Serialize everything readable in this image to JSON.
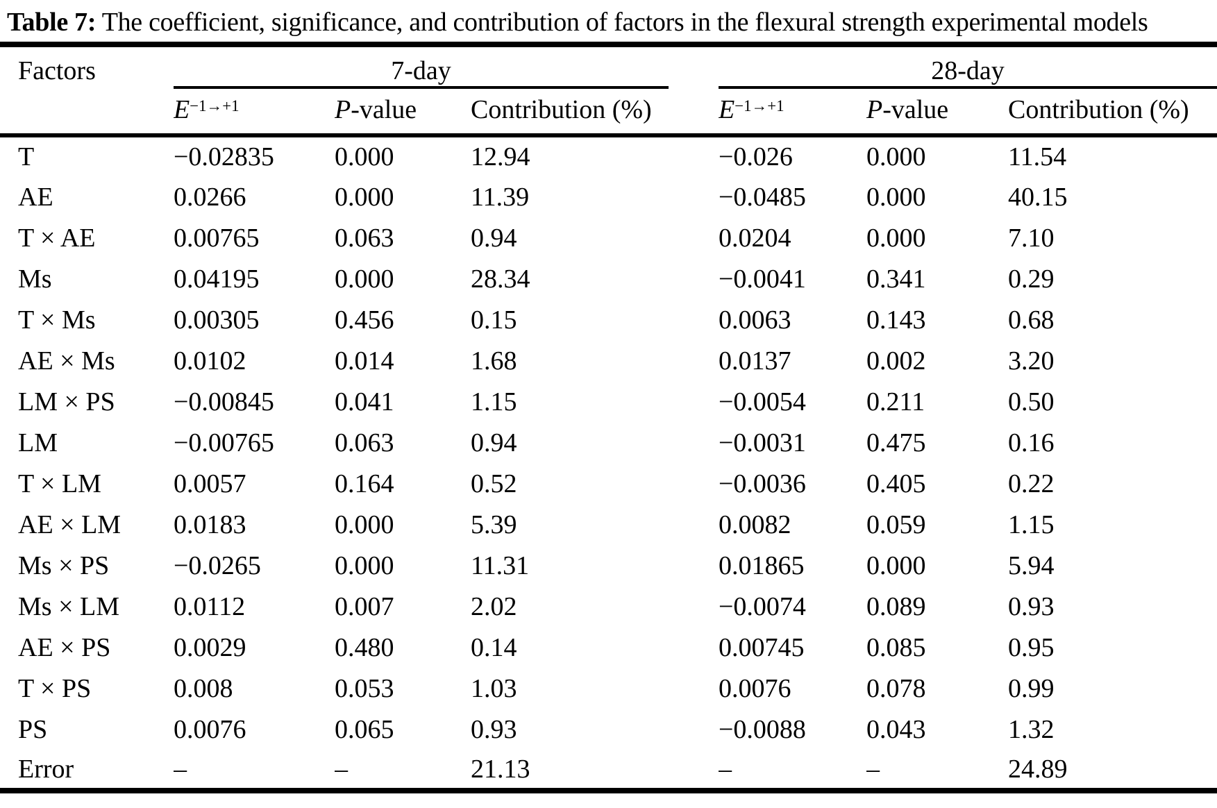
{
  "title": {
    "label": "Table 7:",
    "text": "The coefficient, significance, and contribution of factors in the flexural strength experimental models"
  },
  "table": {
    "factors_header": "Factors",
    "groups": [
      {
        "label": "7-day"
      },
      {
        "label": "28-day"
      }
    ],
    "subheader": {
      "e_base": "E",
      "e_sup": "−1→+1",
      "p_italic": "P",
      "p_rest": "-value",
      "contribution": "Contribution (%)"
    },
    "rows": [
      {
        "factor": "T",
        "d7": {
          "e": "−0.02835",
          "p": "0.000",
          "c": "12.94"
        },
        "d28": {
          "e": "−0.026",
          "p": "0.000",
          "c": "11.54"
        }
      },
      {
        "factor": "AE",
        "d7": {
          "e": "0.0266",
          "p": "0.000",
          "c": "11.39"
        },
        "d28": {
          "e": "−0.0485",
          "p": "0.000",
          "c": "40.15"
        }
      },
      {
        "factor": "T × AE",
        "d7": {
          "e": "0.00765",
          "p": "0.063",
          "c": "0.94"
        },
        "d28": {
          "e": "0.0204",
          "p": "0.000",
          "c": "7.10"
        }
      },
      {
        "factor": "Ms",
        "d7": {
          "e": "0.04195",
          "p": "0.000",
          "c": "28.34"
        },
        "d28": {
          "e": "−0.0041",
          "p": "0.341",
          "c": "0.29"
        }
      },
      {
        "factor": "T × Ms",
        "d7": {
          "e": "0.00305",
          "p": "0.456",
          "c": "0.15"
        },
        "d28": {
          "e": "0.0063",
          "p": "0.143",
          "c": "0.68"
        }
      },
      {
        "factor": "AE × Ms",
        "d7": {
          "e": "0.0102",
          "p": "0.014",
          "c": "1.68"
        },
        "d28": {
          "e": "0.0137",
          "p": "0.002",
          "c": "3.20"
        }
      },
      {
        "factor": "LM × PS",
        "d7": {
          "e": "−0.00845",
          "p": "0.041",
          "c": "1.15"
        },
        "d28": {
          "e": "−0.0054",
          "p": "0.211",
          "c": "0.50"
        }
      },
      {
        "factor": "LM",
        "d7": {
          "e": "−0.00765",
          "p": "0.063",
          "c": "0.94"
        },
        "d28": {
          "e": "−0.0031",
          "p": "0.475",
          "c": "0.16"
        }
      },
      {
        "factor": "T × LM",
        "d7": {
          "e": "0.0057",
          "p": "0.164",
          "c": "0.52"
        },
        "d28": {
          "e": "−0.0036",
          "p": "0.405",
          "c": "0.22"
        }
      },
      {
        "factor": "AE × LM",
        "d7": {
          "e": "0.0183",
          "p": "0.000",
          "c": "5.39"
        },
        "d28": {
          "e": "0.0082",
          "p": "0.059",
          "c": "1.15"
        }
      },
      {
        "factor": "Ms × PS",
        "d7": {
          "e": "−0.0265",
          "p": "0.000",
          "c": "11.31"
        },
        "d28": {
          "e": "0.01865",
          "p": "0.000",
          "c": "5.94"
        }
      },
      {
        "factor": "Ms × LM",
        "d7": {
          "e": "0.0112",
          "p": "0.007",
          "c": "2.02"
        },
        "d28": {
          "e": "−0.0074",
          "p": "0.089",
          "c": "0.93"
        }
      },
      {
        "factor": "AE × PS",
        "d7": {
          "e": "0.0029",
          "p": "0.480",
          "c": "0.14"
        },
        "d28": {
          "e": "0.00745",
          "p": "0.085",
          "c": "0.95"
        }
      },
      {
        "factor": "T × PS",
        "d7": {
          "e": "0.008",
          "p": "0.053",
          "c": "1.03"
        },
        "d28": {
          "e": "0.0076",
          "p": "0.078",
          "c": "0.99"
        }
      },
      {
        "factor": "PS",
        "d7": {
          "e": "0.0076",
          "p": "0.065",
          "c": "0.93"
        },
        "d28": {
          "e": "−0.0088",
          "p": "0.043",
          "c": "1.32"
        }
      },
      {
        "factor": "Error",
        "d7": {
          "e": "–",
          "p": "–",
          "c": "21.13"
        },
        "d28": {
          "e": "–",
          "p": "–",
          "c": "24.89"
        }
      }
    ]
  }
}
